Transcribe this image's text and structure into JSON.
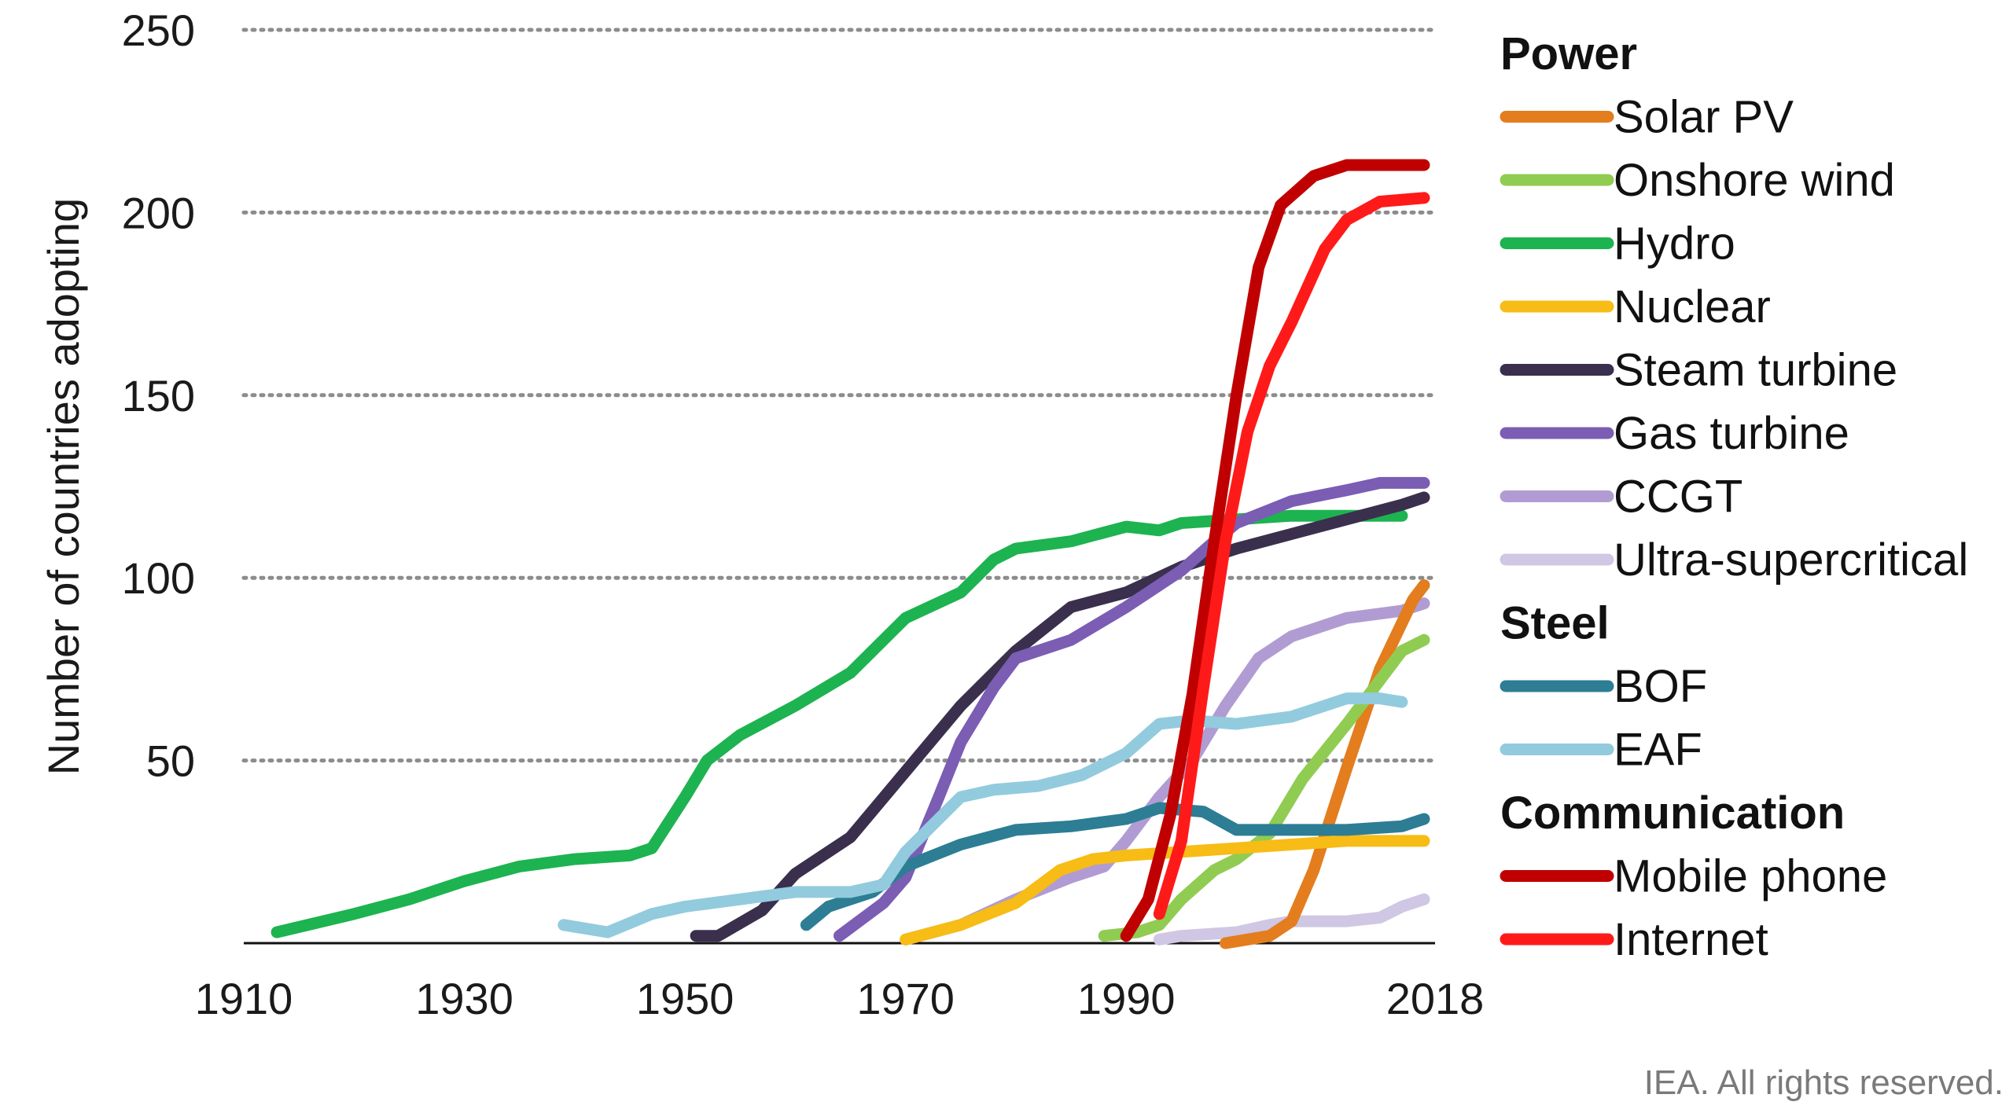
{
  "chart_data": {
    "type": "line",
    "ylabel": "Number of countries adopting",
    "xlabel": "",
    "xlim": [
      1910,
      2018
    ],
    "ylim": [
      0,
      250
    ],
    "x_ticks": [
      "1910",
      "1930",
      "1950",
      "1970",
      "1990",
      "2018"
    ],
    "y_ticks": [
      "50",
      "100",
      "150",
      "200",
      "250"
    ],
    "grid": "horizontal dotted",
    "legend_placement": "right",
    "legend_groups": [
      {
        "name": "Power",
        "series": [
          "Solar PV",
          "Onshore wind",
          "Hydro",
          "Nuclear",
          "Steam turbine",
          "Gas turbine",
          "CCGT",
          "Ultra-supercritical"
        ]
      },
      {
        "name": "Steel",
        "series": [
          "BOF",
          "EAF"
        ]
      },
      {
        "name": "Communication",
        "series": [
          "Mobile phone",
          "Internet"
        ]
      }
    ],
    "series": [
      {
        "name": "Hydro",
        "color": "#1db350",
        "points": [
          [
            1913,
            3
          ],
          [
            1920,
            8
          ],
          [
            1925,
            12
          ],
          [
            1930,
            17
          ],
          [
            1935,
            21
          ],
          [
            1940,
            23
          ],
          [
            1945,
            24
          ],
          [
            1947,
            26
          ],
          [
            1950,
            40
          ],
          [
            1952,
            50
          ],
          [
            1955,
            57
          ],
          [
            1960,
            65
          ],
          [
            1965,
            74
          ],
          [
            1970,
            89
          ],
          [
            1975,
            96
          ],
          [
            1978,
            105
          ],
          [
            1980,
            108
          ],
          [
            1985,
            110
          ],
          [
            1990,
            114
          ],
          [
            1993,
            113
          ],
          [
            1995,
            115
          ],
          [
            2000,
            116
          ],
          [
            2005,
            117
          ],
          [
            2010,
            117
          ],
          [
            2015,
            117
          ]
        ]
      },
      {
        "name": "Steam turbine",
        "color": "#3a2f4d",
        "points": [
          [
            1951,
            2
          ],
          [
            1953,
            2
          ],
          [
            1957,
            9
          ],
          [
            1960,
            19
          ],
          [
            1965,
            29
          ],
          [
            1970,
            47
          ],
          [
            1975,
            65
          ],
          [
            1980,
            80
          ],
          [
            1985,
            92
          ],
          [
            1990,
            96
          ],
          [
            1995,
            103
          ],
          [
            2000,
            108
          ],
          [
            2005,
            112
          ],
          [
            2010,
            116
          ],
          [
            2015,
            120
          ],
          [
            2017,
            122
          ]
        ]
      },
      {
        "name": "Gas turbine",
        "color": "#7b5db4",
        "points": [
          [
            1964,
            2
          ],
          [
            1968,
            11
          ],
          [
            1970,
            18
          ],
          [
            1973,
            40
          ],
          [
            1975,
            55
          ],
          [
            1978,
            70
          ],
          [
            1980,
            78
          ],
          [
            1985,
            83
          ],
          [
            1990,
            92
          ],
          [
            1995,
            102
          ],
          [
            1998,
            110
          ],
          [
            2000,
            115
          ],
          [
            2005,
            121
          ],
          [
            2010,
            124
          ],
          [
            2013,
            126
          ],
          [
            2017,
            126
          ]
        ]
      },
      {
        "name": "CCGT",
        "color": "#b09cd2",
        "points": [
          [
            1970,
            1
          ],
          [
            1975,
            5
          ],
          [
            1980,
            12
          ],
          [
            1985,
            18
          ],
          [
            1988,
            21
          ],
          [
            1990,
            28
          ],
          [
            1993,
            40
          ],
          [
            1996,
            50
          ],
          [
            1999,
            65
          ],
          [
            2002,
            78
          ],
          [
            2005,
            84
          ],
          [
            2010,
            89
          ],
          [
            2015,
            91
          ],
          [
            2017,
            93
          ]
        ]
      },
      {
        "name": "Ultra-supercritical",
        "color": "#cfc7e3",
        "points": [
          [
            1993,
            1
          ],
          [
            1995,
            2
          ],
          [
            2000,
            3
          ],
          [
            2003,
            5
          ],
          [
            2005,
            6
          ],
          [
            2010,
            6
          ],
          [
            2013,
            7
          ],
          [
            2015,
            10
          ],
          [
            2017,
            12
          ]
        ]
      },
      {
        "name": "Solar PV",
        "color": "#e37d1e",
        "points": [
          [
            1999,
            0
          ],
          [
            2003,
            2
          ],
          [
            2005,
            6
          ],
          [
            2007,
            20
          ],
          [
            2010,
            48
          ],
          [
            2013,
            75
          ],
          [
            2016,
            94
          ],
          [
            2017,
            98
          ]
        ]
      },
      {
        "name": "Onshore wind",
        "color": "#90cc52",
        "points": [
          [
            1988,
            2
          ],
          [
            1991,
            3
          ],
          [
            1993,
            5
          ],
          [
            1995,
            12
          ],
          [
            1998,
            20
          ],
          [
            2000,
            23
          ],
          [
            2003,
            30
          ],
          [
            2006,
            45
          ],
          [
            2010,
            60
          ],
          [
            2013,
            72
          ],
          [
            2015,
            80
          ],
          [
            2017,
            83
          ]
        ]
      },
      {
        "name": "Nuclear",
        "color": "#f7bc15",
        "points": [
          [
            1970,
            1
          ],
          [
            1975,
            5
          ],
          [
            1980,
            11
          ],
          [
            1984,
            20
          ],
          [
            1987,
            23
          ],
          [
            1990,
            24
          ],
          [
            1995,
            25
          ],
          [
            2000,
            26
          ],
          [
            2005,
            27
          ],
          [
            2010,
            28
          ],
          [
            2015,
            28
          ],
          [
            2017,
            28
          ]
        ]
      },
      {
        "name": "BOF",
        "color": "#2d7d95",
        "points": [
          [
            1961,
            5
          ],
          [
            1963,
            10
          ],
          [
            1967,
            14
          ],
          [
            1970,
            21
          ],
          [
            1975,
            27
          ],
          [
            1980,
            31
          ],
          [
            1985,
            32
          ],
          [
            1990,
            34
          ],
          [
            1993,
            37
          ],
          [
            1997,
            36
          ],
          [
            2000,
            31
          ],
          [
            2005,
            31
          ],
          [
            2010,
            31
          ],
          [
            2015,
            32
          ],
          [
            2017,
            34
          ]
        ]
      },
      {
        "name": "EAF",
        "color": "#92cbdd",
        "points": [
          [
            1939,
            5
          ],
          [
            1943,
            3
          ],
          [
            1947,
            8
          ],
          [
            1950,
            10
          ],
          [
            1955,
            12
          ],
          [
            1960,
            14
          ],
          [
            1965,
            14
          ],
          [
            1968,
            16
          ],
          [
            1970,
            25
          ],
          [
            1975,
            40
          ],
          [
            1978,
            42
          ],
          [
            1982,
            43
          ],
          [
            1986,
            46
          ],
          [
            1990,
            52
          ],
          [
            1993,
            60
          ],
          [
            1996,
            61
          ],
          [
            2000,
            60
          ],
          [
            2005,
            62
          ],
          [
            2010,
            67
          ],
          [
            2013,
            67
          ],
          [
            2015,
            66
          ]
        ]
      },
      {
        "name": "Mobile phone",
        "color": "#c00000",
        "points": [
          [
            1990,
            2
          ],
          [
            1992,
            12
          ],
          [
            1994,
            35
          ],
          [
            1996,
            68
          ],
          [
            1998,
            110
          ],
          [
            2000,
            150
          ],
          [
            2002,
            185
          ],
          [
            2004,
            202
          ],
          [
            2007,
            210
          ],
          [
            2010,
            213
          ],
          [
            2017,
            213
          ]
        ]
      },
      {
        "name": "Internet",
        "color": "#ff1a1a",
        "points": [
          [
            1993,
            8
          ],
          [
            1995,
            28
          ],
          [
            1997,
            70
          ],
          [
            1999,
            110
          ],
          [
            2001,
            140
          ],
          [
            2003,
            158
          ],
          [
            2005,
            170
          ],
          [
            2008,
            190
          ],
          [
            2010,
            198
          ],
          [
            2013,
            203
          ],
          [
            2017,
            204
          ]
        ]
      }
    ]
  },
  "footer": "IEA. All rights reserved."
}
